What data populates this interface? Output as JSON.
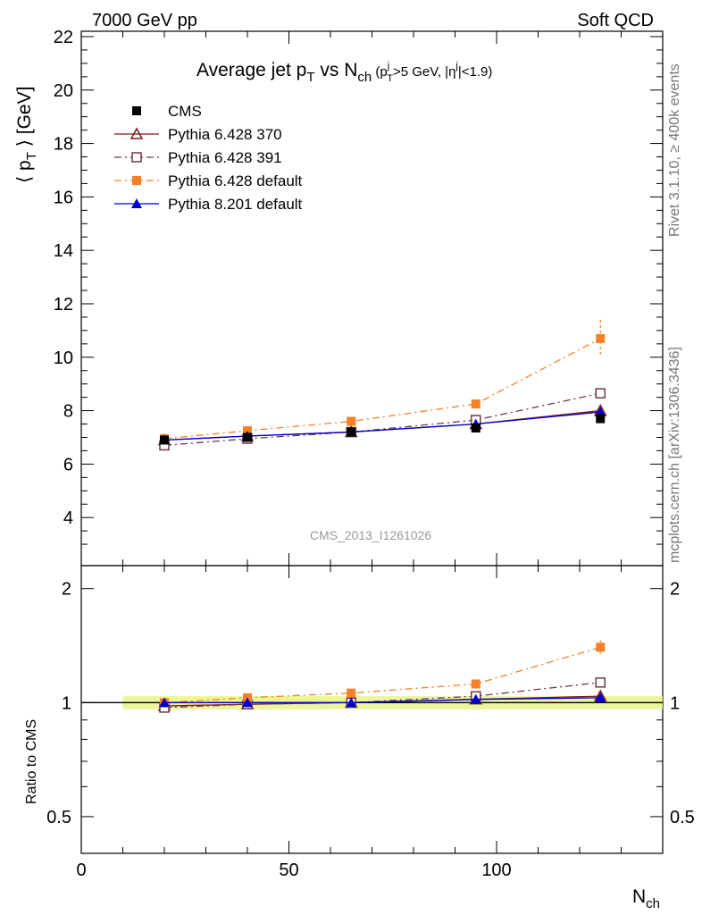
{
  "header": {
    "left": "7000 GeV pp",
    "right": "Soft QCD"
  },
  "side_labels": {
    "rivet": "Rivet 3.1.10, ≥ 400k events",
    "mcplots": "mcplots.cern.ch [arXiv:1306.3436]"
  },
  "chart_data": [
    {
      "type": "line",
      "title": "Average jet pT vs Nch (pTj>5 GeV, |ηj|<1.9)",
      "ylabel": "⟨ pT ⟩ [GeV]",
      "xlabel": "Nch",
      "xlim": [
        0,
        140
      ],
      "ylim": [
        2.2,
        22.2
      ],
      "x_ticks": [
        0,
        50,
        100
      ],
      "y_ticks": [
        4,
        6,
        8,
        10,
        12,
        14,
        16,
        18,
        20,
        22
      ],
      "watermark": "CMS_2013_I1261026",
      "x": [
        20,
        40,
        65,
        95,
        125
      ],
      "series": [
        {
          "name": "CMS",
          "color": "#000000",
          "marker": "square-filled",
          "dash": "none",
          "values": [
            6.9,
            7.0,
            7.2,
            7.35,
            7.7
          ]
        },
        {
          "name": "Pythia 6.428 370",
          "color": "#7b1a1a",
          "marker": "triangle-open",
          "dash": "solid",
          "values": [
            6.9,
            7.05,
            7.2,
            7.5,
            8.0
          ]
        },
        {
          "name": "Pythia 6.428 391",
          "color": "#6b3a4a",
          "marker": "square-open",
          "dash": "dashdot",
          "values": [
            6.7,
            6.95,
            7.2,
            7.65,
            8.65
          ]
        },
        {
          "name": "Pythia 6.428 default",
          "color": "#f58025",
          "marker": "square-filled",
          "dash": "dashdot",
          "values": [
            6.95,
            7.25,
            7.6,
            8.25,
            10.7
          ],
          "errors": [
            0,
            0,
            0,
            0,
            0.7
          ]
        },
        {
          "name": "Pythia 8.201 default",
          "color": "#0000cc",
          "marker": "triangle-filled",
          "dash": "solid",
          "values": [
            6.9,
            7.05,
            7.2,
            7.5,
            7.95
          ]
        }
      ]
    },
    {
      "type": "line",
      "ylabel": "Ratio to CMS",
      "xlabel": "Nch",
      "xlim": [
        0,
        140
      ],
      "ylim": [
        0.4,
        2.3
      ],
      "scale": "log",
      "y_ticks": [
        0.5,
        1,
        2
      ],
      "x": [
        20,
        40,
        65,
        95,
        125
      ],
      "band": [
        0.96,
        1.04
      ],
      "series": [
        {
          "name": "Pythia 6.428 370",
          "color": "#7b1a1a",
          "marker": "triangle-open",
          "dash": "solid",
          "values": [
            0.98,
            0.99,
            1.0,
            1.02,
            1.04
          ]
        },
        {
          "name": "Pythia 6.428 391",
          "color": "#6b3a4a",
          "marker": "square-open",
          "dash": "dashdot",
          "values": [
            0.97,
            0.99,
            1.0,
            1.04,
            1.13
          ]
        },
        {
          "name": "Pythia 6.428 default",
          "color": "#f58025",
          "marker": "square-filled",
          "dash": "dashdot",
          "values": [
            1.0,
            1.03,
            1.06,
            1.12,
            1.4
          ],
          "errors": [
            0,
            0,
            0,
            0,
            0.06
          ]
        },
        {
          "name": "Pythia 8.201 default",
          "color": "#0000cc",
          "marker": "triangle-filled",
          "dash": "solid",
          "values": [
            1.0,
            1.0,
            1.0,
            1.02,
            1.03
          ]
        }
      ]
    }
  ]
}
